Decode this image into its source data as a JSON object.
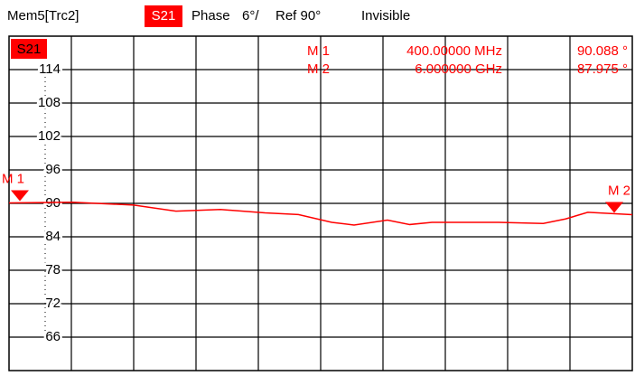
{
  "header": {
    "trace": "Mem5[Trc2]",
    "param": "S21",
    "format": "Phase",
    "scale": "6°/",
    "ref": "Ref 90°",
    "state": "Invisible"
  },
  "chart_data": {
    "type": "line",
    "x": [
      0.4,
      0.97,
      1.52,
      1.9,
      2.3,
      2.7,
      3.0,
      3.3,
      3.5,
      3.8,
      4.0,
      4.2,
      4.8,
      5.2,
      5.4,
      5.6,
      6.0
    ],
    "series": [
      {
        "name": "S21",
        "color": "#ff0000",
        "values": [
          90.088,
          90.2,
          89.7,
          88.6,
          88.9,
          88.3,
          88.0,
          86.6,
          86.1,
          87.0,
          86.2,
          86.6,
          86.6,
          86.4,
          87.2,
          88.4,
          87.975
        ]
      }
    ],
    "xlim": [
      0.4,
      6.0
    ],
    "ylim": [
      60,
      120
    ],
    "yticks": [
      66,
      72,
      78,
      84,
      90,
      96,
      102,
      108,
      114
    ],
    "grid": true,
    "markers": [
      {
        "label": "M 1",
        "x": 0.4,
        "freq_label": "400.00000 MHz",
        "value": 90.088,
        "value_label": "90.088 °"
      },
      {
        "label": "M 2",
        "x": 6.0,
        "freq_label": "6.000000 GHz",
        "value": 87.975,
        "value_label": "87.975 °"
      }
    ]
  }
}
